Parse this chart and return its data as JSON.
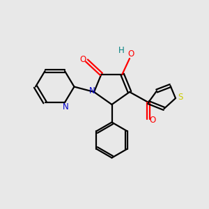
{
  "background_color": "#e8e8e8",
  "atom_colors": {
    "O": "#ff0000",
    "N": "#0000cc",
    "S": "#cccc00",
    "H": "#008080",
    "C": "#000000"
  },
  "figsize": [
    3.0,
    3.0
  ],
  "dpi": 100
}
